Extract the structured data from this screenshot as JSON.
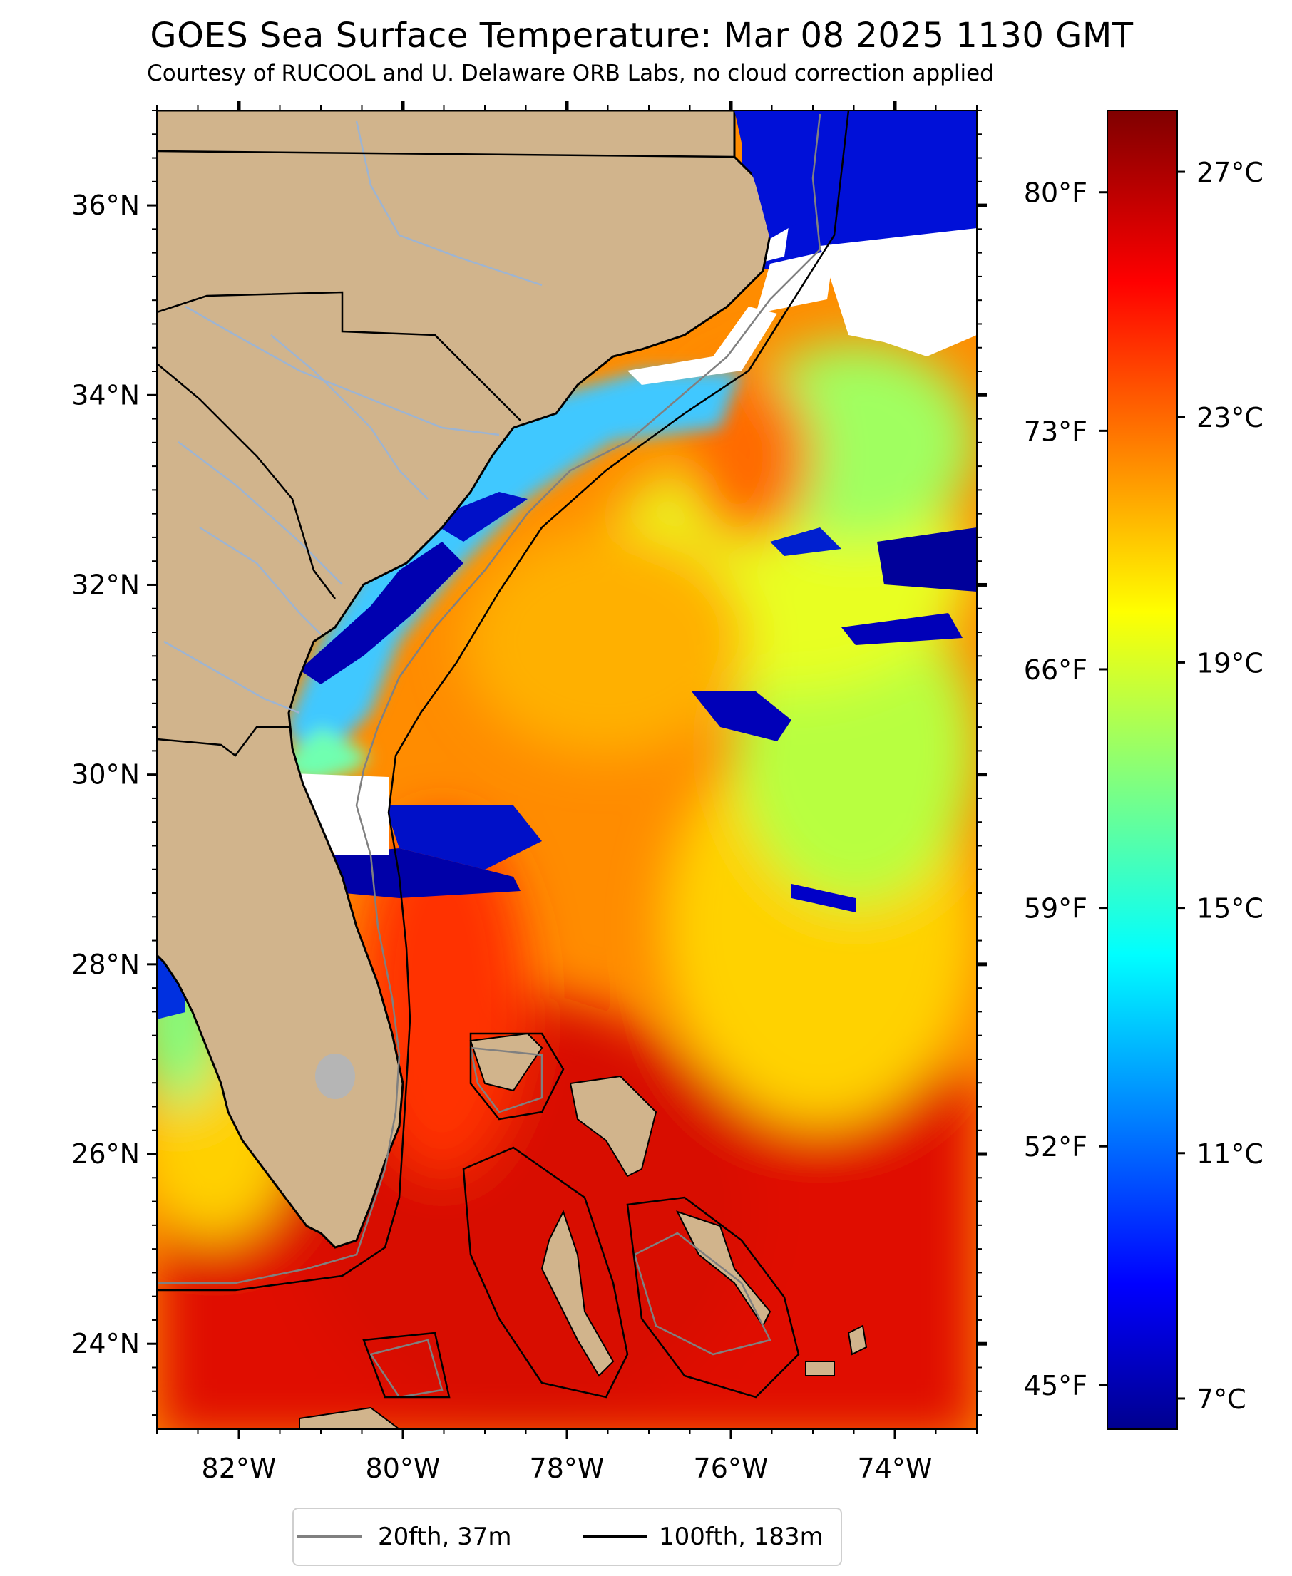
{
  "title": "GOES Sea Surface Temperature: Mar 08 2025 1130 GMT",
  "subtitle": "Courtesy of RUCOOL and U. Delaware ORB Labs, no cloud correction applied",
  "colors": {
    "land": "#d1b48c",
    "cloud": "#ffffff",
    "lake": "#b5b5b5",
    "river": "#9db4d2",
    "contour_20": "#808080",
    "contour_100": "#000000"
  },
  "chart_data": {
    "type": "heatmap",
    "variable": "Sea surface temperature",
    "lon_range": [
      -83,
      -73
    ],
    "lat_range": [
      23.1,
      37.0
    ],
    "x_ticks": [
      "82°W",
      "80°W",
      "78°W",
      "76°W",
      "74°W"
    ],
    "x_tick_values": [
      -82,
      -80,
      -78,
      -76,
      -74
    ],
    "y_ticks": [
      "36°N",
      "34°N",
      "32°N",
      "30°N",
      "28°N",
      "26°N",
      "24°N"
    ],
    "y_tick_values": [
      36,
      34,
      32,
      30,
      28,
      26,
      24
    ],
    "right_axis_ticks": [
      "80°F",
      "73°F",
      "66°F",
      "59°F",
      "52°F",
      "45°F"
    ],
    "colorbar": {
      "range_c": [
        6.5,
        28
      ],
      "tick_labels": [
        "27°C",
        "23°C",
        "19°C",
        "15°C",
        "11°C",
        "7°C"
      ],
      "tick_values": [
        27,
        23,
        19,
        15,
        11,
        7
      ],
      "colormap": "jet"
    },
    "legend": [
      {
        "label": "20fth, 37m",
        "color": "#808080"
      },
      {
        "label": "100fth, 183m",
        "color": "#000000"
      }
    ]
  }
}
